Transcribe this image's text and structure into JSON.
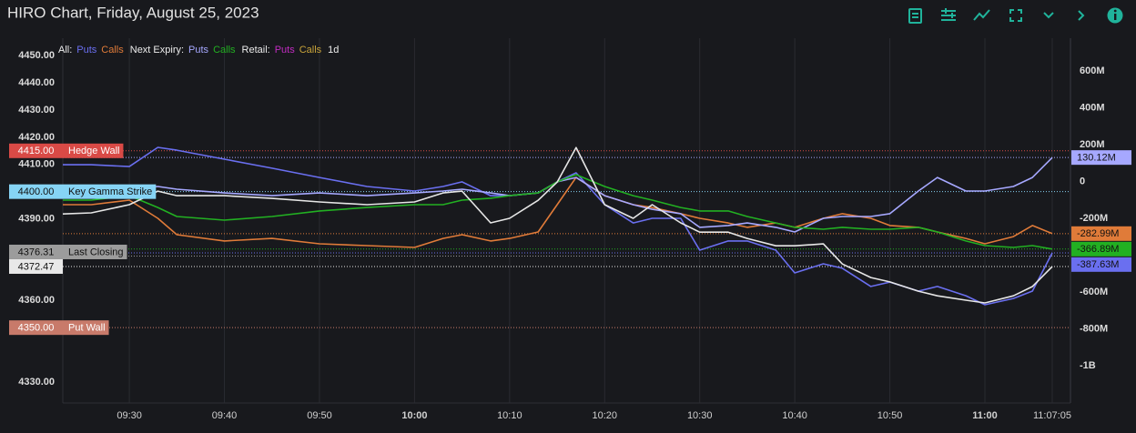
{
  "chart_data": {
    "type": "line",
    "title": "HIRO Chart, Friday, August 25, 2023",
    "x": [
      "09:23",
      "09:26",
      "09:30",
      "09:33",
      "09:35",
      "09:40",
      "09:45",
      "09:50",
      "09:55",
      "10:00",
      "10:03",
      "10:05",
      "10:08",
      "10:10",
      "10:13",
      "10:15",
      "10:17",
      "10:20",
      "10:23",
      "10:25",
      "10:28",
      "10:30",
      "10:33",
      "10:35",
      "10:38",
      "10:40",
      "10:43",
      "10:45",
      "10:48",
      "10:50",
      "10:53",
      "10:55",
      "10:58",
      "11:00",
      "11:03",
      "11:05",
      "11:07:05"
    ],
    "xlim": [
      "09:23",
      "11:09"
    ],
    "xticks": [
      "09:30",
      "09:40",
      "09:50",
      "10:00",
      "10:10",
      "10:20",
      "10:30",
      "10:40",
      "10:50",
      "11:00",
      "11:07:05"
    ],
    "ylim": [
      4322.3,
      4456.4
    ],
    "yticks": [
      {
        "value": 4450,
        "label": "4450.00"
      },
      {
        "value": 4440,
        "label": "4440.00"
      },
      {
        "value": 4430,
        "label": "4430.00"
      },
      {
        "value": 4420,
        "label": "4420.00"
      },
      {
        "value": 4410,
        "label": "4410.00"
      },
      {
        "value": 4390,
        "label": "4390.00"
      },
      {
        "value": 4360,
        "label": "4360.00"
      },
      {
        "value": 4330,
        "label": "4330.00"
      }
    ],
    "y2lim": [
      -1202.4,
      777.8
    ],
    "y2ticks": [
      {
        "value": 600,
        "label": "600M"
      },
      {
        "value": 400,
        "label": "400M"
      },
      {
        "value": 200,
        "label": "200M"
      },
      0,
      {
        "value": -200,
        "label": "-200M"
      },
      {
        "value": -600,
        "label": "-600M"
      },
      {
        "value": -800,
        "label": "-800M"
      },
      {
        "value": -1000,
        "label": "-1B"
      }
    ],
    "grid": true,
    "price": {
      "color": "#e6e6e6",
      "values": [
        4391.8,
        4392.2,
        4395.2,
        4400.2,
        4398.5,
        4398.5,
        4397.5,
        4396.2,
        4395.2,
        4396.2,
        4399.5,
        4400.2,
        4388.5,
        4390.2,
        4396.8,
        4403.5,
        4416.2,
        4395.2,
        4390.2,
        4395.2,
        4388.5,
        4385.1,
        4385.1,
        4382.8,
        4380.1,
        4380.1,
        4380.8,
        4373.4,
        4368.4,
        4366.8,
        4363.4,
        4361.7,
        4360.1,
        4359.1,
        4361.7,
        4365.1,
        4372.47
      ]
    },
    "series": [
      {
        "group": "All:",
        "name": "Puts",
        "color": "#6a6ff0",
        "axis": "y2",
        "end_label": "-387.63M",
        "values": [
          91,
          91,
          81,
          185,
          170,
          121,
          72,
          22,
          -27,
          -52,
          -27,
          -2,
          -77,
          -77,
          -62,
          -2,
          47,
          -126,
          -225,
          -200,
          -200,
          -373,
          -323,
          -323,
          -373,
          -496,
          -447,
          -471,
          -570,
          -546,
          -595,
          -570,
          -620,
          -669,
          -635,
          -595,
          -387.63
        ]
      },
      {
        "group": "All:",
        "name": "Calls",
        "color": "#e07b39",
        "axis": "y2",
        "end_label": "-282.99M",
        "values": [
          -126,
          -126,
          -101,
          -200,
          -289,
          -323,
          -309,
          -338,
          -348,
          -358,
          -309,
          -289,
          -323,
          -309,
          -274,
          -126,
          22,
          -77,
          -126,
          -141,
          -175,
          -200,
          -225,
          -249,
          -225,
          -249,
          -200,
          -175,
          -200,
          -239,
          -249,
          -274,
          -309,
          -338,
          -299,
          -239,
          -282.99
        ]
      },
      {
        "group": "Next Expiry:",
        "name": "Puts",
        "color": "#a6a8ff",
        "axis": "y2",
        "end_label": "130.12M",
        "values": [
          -42,
          -42,
          -42,
          -27,
          -42,
          -62,
          -77,
          -62,
          -77,
          -62,
          -52,
          -42,
          -62,
          -77,
          -62,
          -2,
          22,
          -77,
          -126,
          -151,
          -175,
          -249,
          -239,
          -225,
          -249,
          -274,
          -200,
          -190,
          -190,
          -175,
          -52,
          22,
          -52,
          -52,
          -27,
          22,
          130.12
        ]
      },
      {
        "group": "Next Expiry:",
        "name": "Calls",
        "color": "#22b022",
        "axis": "y2",
        "end_label": "-366.89M",
        "values": [
          -101,
          -101,
          -77,
          -141,
          -190,
          -210,
          -190,
          -160,
          -141,
          -126,
          -126,
          -101,
          -91,
          -77,
          -62,
          -2,
          37,
          -27,
          -77,
          -101,
          -141,
          -160,
          -160,
          -190,
          -225,
          -249,
          -259,
          -249,
          -259,
          -259,
          -249,
          -274,
          -323,
          -348,
          -358,
          -348,
          -366.89
        ]
      }
    ],
    "hidden_series": [
      {
        "group": "Retail:",
        "name": "Puts",
        "color": "#c02cc0"
      },
      {
        "group": "Retail:",
        "name": "Calls",
        "color": "#c9a43a"
      }
    ],
    "period": "1d",
    "levels": [
      {
        "value": 4415,
        "label": "4415.00",
        "name": "Hedge Wall",
        "color": "#d94a46"
      },
      {
        "value": 4400,
        "label": "4400.00",
        "name": "Key Gamma Strike",
        "color": "#86d4f5"
      },
      {
        "value": 4376.31,
        "label": "4376.31",
        "name": "Last Closing",
        "color": "#9c9c9c"
      },
      {
        "value": 4372.47,
        "label": "4372.47",
        "color": "#e8e8e8"
      },
      {
        "value": 4350,
        "label": "4350.00",
        "name": "Put Wall",
        "color": "#c87a6a"
      }
    ]
  }
}
